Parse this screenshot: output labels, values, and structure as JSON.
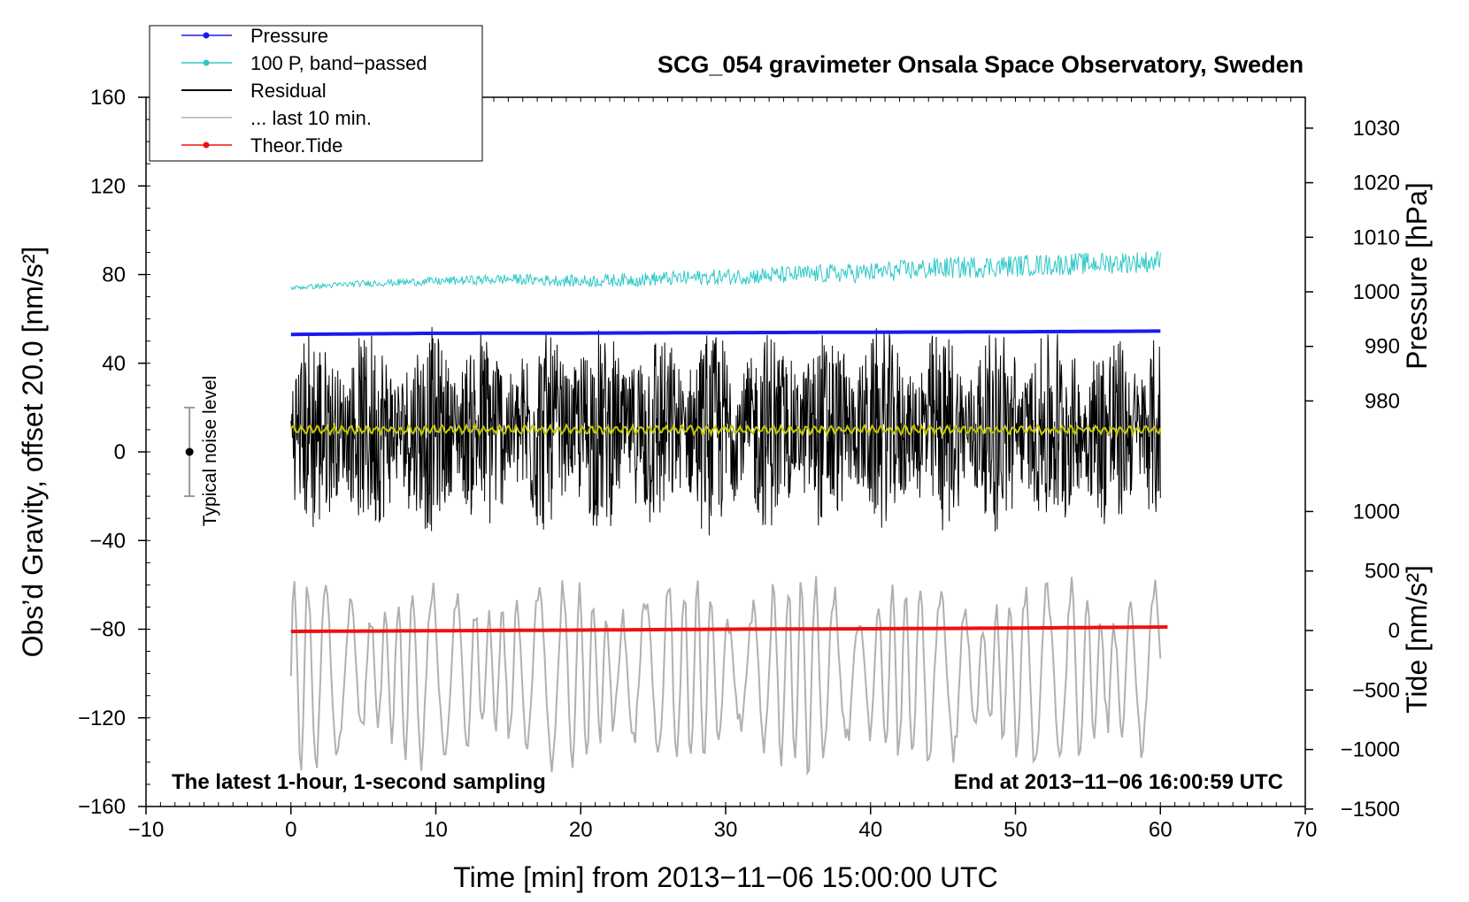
{
  "chart_data": {
    "type": "line",
    "title": "SCG_054 gravimeter Onsala Space Observatory, Sweden",
    "xlabel": "Time [min] from 2013−11−06 15:00:00 UTC",
    "ylabel_left": "Obs’d Gravity, offset 20.0 [nm/s²]",
    "ylabel_right_pressure": "Pressure [hPa]",
    "ylabel_right_tide": "Tide [nm/s²]",
    "xlim": [
      -10,
      70
    ],
    "ylim_left": [
      -160,
      160
    ],
    "x_ticks": [
      "−10",
      "0",
      "10",
      "20",
      "30",
      "40",
      "50",
      "60",
      "70"
    ],
    "y_ticks_left": [
      "160",
      "120",
      "80",
      "40",
      "0",
      "−40",
      "−80",
      "−120",
      "−160"
    ],
    "pressure_ticks": [
      "1030",
      "1020",
      "1010",
      "1000",
      "990",
      "980"
    ],
    "tide_ticks": [
      "1000",
      "500",
      "0",
      "−500",
      "−1000",
      "−1500"
    ],
    "footer_left": "The latest 1-hour, 1-second sampling",
    "footer_right": "End at 2013−11−06 16:00:59 UTC",
    "noise_label": "Typical noise level",
    "noise_bar": {
      "x": -7,
      "center": 0,
      "low": -20,
      "high": 20
    },
    "legend": [
      {
        "label": "Pressure",
        "color": "#1a1aee",
        "marker": true
      },
      {
        "label": "100 P, band−passed",
        "color": "#2ec8c8",
        "marker": true
      },
      {
        "label": "Residual",
        "color": "#000000",
        "marker": false
      },
      {
        "label": "... last 10 min.",
        "color": "#b0b0b0",
        "marker": false
      },
      {
        "label": "Theor.Tide",
        "color": "#ee1111",
        "marker": true
      }
    ],
    "series": [
      {
        "name": "Pressure",
        "color": "#1a1aee",
        "x": [
          0,
          10,
          20,
          30,
          40,
          50,
          60
        ],
        "y": [
          53.0,
          53.5,
          53.6,
          53.8,
          54.0,
          54.2,
          54.5
        ]
      },
      {
        "name": "100 P, band-passed",
        "color": "#2ec8c8",
        "x": [
          0,
          5,
          10,
          15,
          20,
          25,
          30,
          35,
          40,
          45,
          50,
          55,
          60
        ],
        "y": [
          74,
          76,
          77,
          78,
          77,
          78,
          79,
          80,
          81,
          83,
          84,
          85,
          86
        ]
      },
      {
        "name": "Residual",
        "color": "#000000",
        "x": [
          0,
          10,
          20,
          30,
          40,
          50,
          60
        ],
        "y": [
          10,
          10,
          10,
          10,
          10,
          10,
          10
        ],
        "amplitude": 50
      },
      {
        "name": "Residual (smoothed)",
        "color": "#c8c800",
        "x": [
          0,
          60
        ],
        "y": [
          10,
          10
        ]
      },
      {
        "name": "... last 10 min.",
        "color": "#b0b0b0",
        "x": [
          0,
          60
        ],
        "y": [
          -100,
          -100
        ],
        "amplitude": 40
      },
      {
        "name": "Theor.Tide",
        "color": "#ee1111",
        "x": [
          0,
          10,
          20,
          30,
          40,
          50,
          60.5
        ],
        "y": [
          -81,
          -80.7,
          -80.4,
          -80,
          -79.8,
          -79.5,
          -79
        ]
      }
    ]
  }
}
